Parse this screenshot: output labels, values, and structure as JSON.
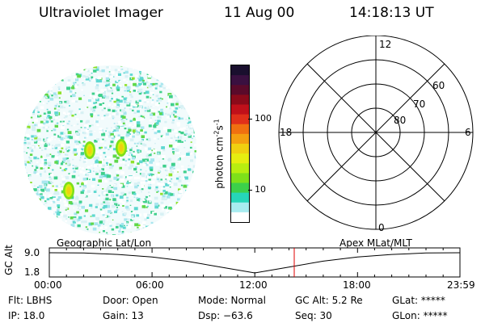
{
  "header": {
    "instrument": "Ultraviolet Imager",
    "date": "11 Aug 00",
    "time": "14:18:13 UT"
  },
  "colorbar": {
    "label": "photon cm",
    "label_sup1": "-2",
    "label_mid": "s",
    "label_sup2": "-1",
    "tick_labels": [
      "100",
      "10"
    ],
    "colors": [
      "#1a0f2e",
      "#3a1040",
      "#5a0a2a",
      "#8b0a1a",
      "#c0101a",
      "#e0301a",
      "#f07010",
      "#f4a010",
      "#f0d010",
      "#e6ee10",
      "#b8ee10",
      "#7ee01a",
      "#3cd04a",
      "#26d6b8",
      "#a8ecf0",
      "#ffffff"
    ]
  },
  "polar_plot": {
    "mlt_labels": [
      "12",
      "18",
      "6",
      "0"
    ],
    "lat_labels": [
      "60",
      "70",
      "80"
    ]
  },
  "timeline": {
    "y_axis_label": "GC Alt",
    "y_ticks": [
      "9.0",
      "1.8"
    ],
    "left_label": "Geographic Lat/Lon",
    "right_label": "Apex MLat/MLT",
    "x_ticks": [
      "00:00",
      "06:00",
      "12:00",
      "18:00",
      "23:59"
    ]
  },
  "status": {
    "filter": "Flt: LBHS",
    "ip": "IP: 18.0",
    "door": "Door: Open",
    "gain": "Gain: 13",
    "mode": "Mode: Normal",
    "dsp": "Dsp:  −63.6",
    "gc_alt": "GC Alt: 5.2 Re",
    "seq": "Seq: 30",
    "glat": "GLat: *****",
    "glon": "GLon: *****"
  },
  "chart_data": [
    {
      "type": "line",
      "title": "",
      "xlabel": "",
      "ylabel": "GC Alt",
      "x": [
        "00:00",
        "02:00",
        "04:00",
        "06:00",
        "08:00",
        "10:00",
        "12:00",
        "14:00",
        "16:00",
        "18:00",
        "20:00",
        "22:00",
        "23:59"
      ],
      "values": [
        9.0,
        8.9,
        8.4,
        7.5,
        6.0,
        3.9,
        1.8,
        3.9,
        6.0,
        7.5,
        8.4,
        8.9,
        9.0
      ],
      "ylim": [
        1.8,
        9.0
      ],
      "current_time": "14:18:13",
      "current_gc_alt": 5.2
    },
    {
      "type": "heatmap",
      "title": "Ultraviolet Imager",
      "colorbar_label": "photon cm-2 s-1",
      "colorbar_ticks": [
        10,
        100
      ],
      "scale": "log",
      "bright_spots": 3
    }
  ]
}
